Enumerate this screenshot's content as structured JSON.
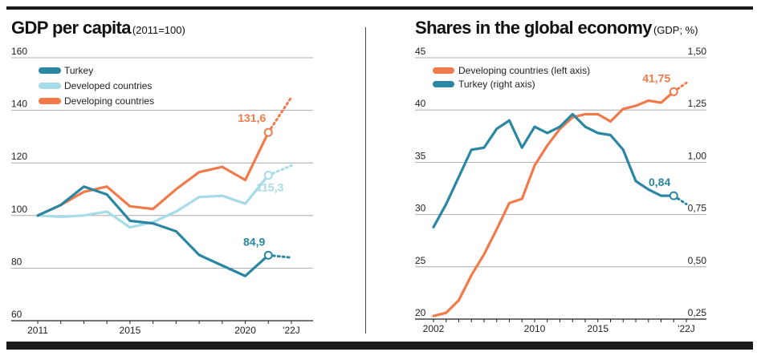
{
  "chart_data": [
    {
      "type": "line",
      "title": "GDP per capita",
      "subtitle": "(2011=100)",
      "y_ticks": [
        "60",
        "80",
        "100",
        "120",
        "140",
        "160"
      ],
      "x_tick_labels": [
        "2011",
        "2015",
        "2020",
        "'22J"
      ],
      "ylim": [
        60,
        160
      ],
      "x_range": [
        2011,
        2022
      ],
      "grid": true,
      "legend_position": "top-left",
      "series": [
        {
          "name": "Turkey",
          "color": "#2a87a3",
          "x": [
            2011,
            2012,
            2013,
            2014,
            2015,
            2016,
            2017,
            2018,
            2019,
            2020,
            2021
          ],
          "values": [
            100,
            104,
            111,
            108,
            98,
            97,
            94,
            85,
            81,
            77,
            84.9
          ],
          "forecast_x": [
            2021,
            2022
          ],
          "forecast_values": [
            84.9,
            84
          ]
        },
        {
          "name": "Developed countries",
          "color": "#a6dbe8",
          "x": [
            2011,
            2012,
            2013,
            2014,
            2015,
            2016,
            2017,
            2018,
            2019,
            2020,
            2021
          ],
          "values": [
            100,
            99.5,
            100,
            101.5,
            95.5,
            97.5,
            101.5,
            107,
            107.5,
            104.5,
            115.3
          ],
          "forecast_x": [
            2021,
            2022
          ],
          "forecast_values": [
            115.3,
            119
          ]
        },
        {
          "name": "Developing countries",
          "color": "#f07a4a",
          "x": [
            2011,
            2012,
            2013,
            2014,
            2015,
            2016,
            2017,
            2018,
            2019,
            2020,
            2021
          ],
          "values": [
            100,
            104,
            109,
            111,
            103.5,
            102.5,
            110,
            116.5,
            118.5,
            113.5,
            131.6
          ],
          "forecast_x": [
            2021,
            2022
          ],
          "forecast_values": [
            131.6,
            145
          ]
        }
      ],
      "annotations": [
        {
          "text": "131,6",
          "series": 2
        },
        {
          "text": "115,3",
          "series": 1
        },
        {
          "text": "84,9",
          "series": 0
        }
      ]
    },
    {
      "type": "line",
      "title": "Shares in the global economy",
      "subtitle": "(GDP; %)",
      "left_y_ticks": [
        "20",
        "25",
        "30",
        "35",
        "40",
        "45"
      ],
      "right_y_ticks": [
        "0,25",
        "0,50",
        "0,75",
        "1,00",
        "1,25",
        "1,50"
      ],
      "x_tick_labels": [
        "2002",
        "2010",
        "2015",
        "'22J"
      ],
      "left_ylim": [
        20,
        45
      ],
      "right_ylim": [
        0.25,
        1.5
      ],
      "x_range": [
        2002,
        2022
      ],
      "grid": true,
      "legend_position": "top-left",
      "series": [
        {
          "name": "Developing countries (left axis)",
          "axis": "left",
          "color": "#f07a4a",
          "x": [
            2002,
            2003,
            2004,
            2005,
            2006,
            2007,
            2008,
            2009,
            2010,
            2011,
            2012,
            2013,
            2014,
            2015,
            2016,
            2017,
            2018,
            2019,
            2020,
            2021
          ],
          "values": [
            20.3,
            20.6,
            21.8,
            24.2,
            26.2,
            28.6,
            31.1,
            31.5,
            34.7,
            36.6,
            38.2,
            39.3,
            39.6,
            39.6,
            38.9,
            40.1,
            40.4,
            40.9,
            40.7,
            41.75
          ],
          "forecast_x": [
            2021,
            2022
          ],
          "forecast_values": [
            41.75,
            42.6
          ]
        },
        {
          "name": "Turkey (right axis)",
          "axis": "right",
          "color": "#2a87a3",
          "x": [
            2002,
            2003,
            2004,
            2005,
            2006,
            2007,
            2008,
            2009,
            2010,
            2011,
            2012,
            2013,
            2014,
            2015,
            2016,
            2017,
            2018,
            2019,
            2020,
            2021
          ],
          "values": [
            0.69,
            0.8,
            0.93,
            1.06,
            1.07,
            1.16,
            1.2,
            1.07,
            1.17,
            1.14,
            1.17,
            1.23,
            1.17,
            1.14,
            1.13,
            1.06,
            0.91,
            0.87,
            0.84,
            0.84
          ],
          "forecast_x": [
            2021,
            2022
          ],
          "forecast_values": [
            0.84,
            0.8
          ]
        }
      ],
      "annotations": [
        {
          "text": "41,75",
          "series": 0
        },
        {
          "text": "0,84",
          "series": 1
        }
      ]
    }
  ]
}
